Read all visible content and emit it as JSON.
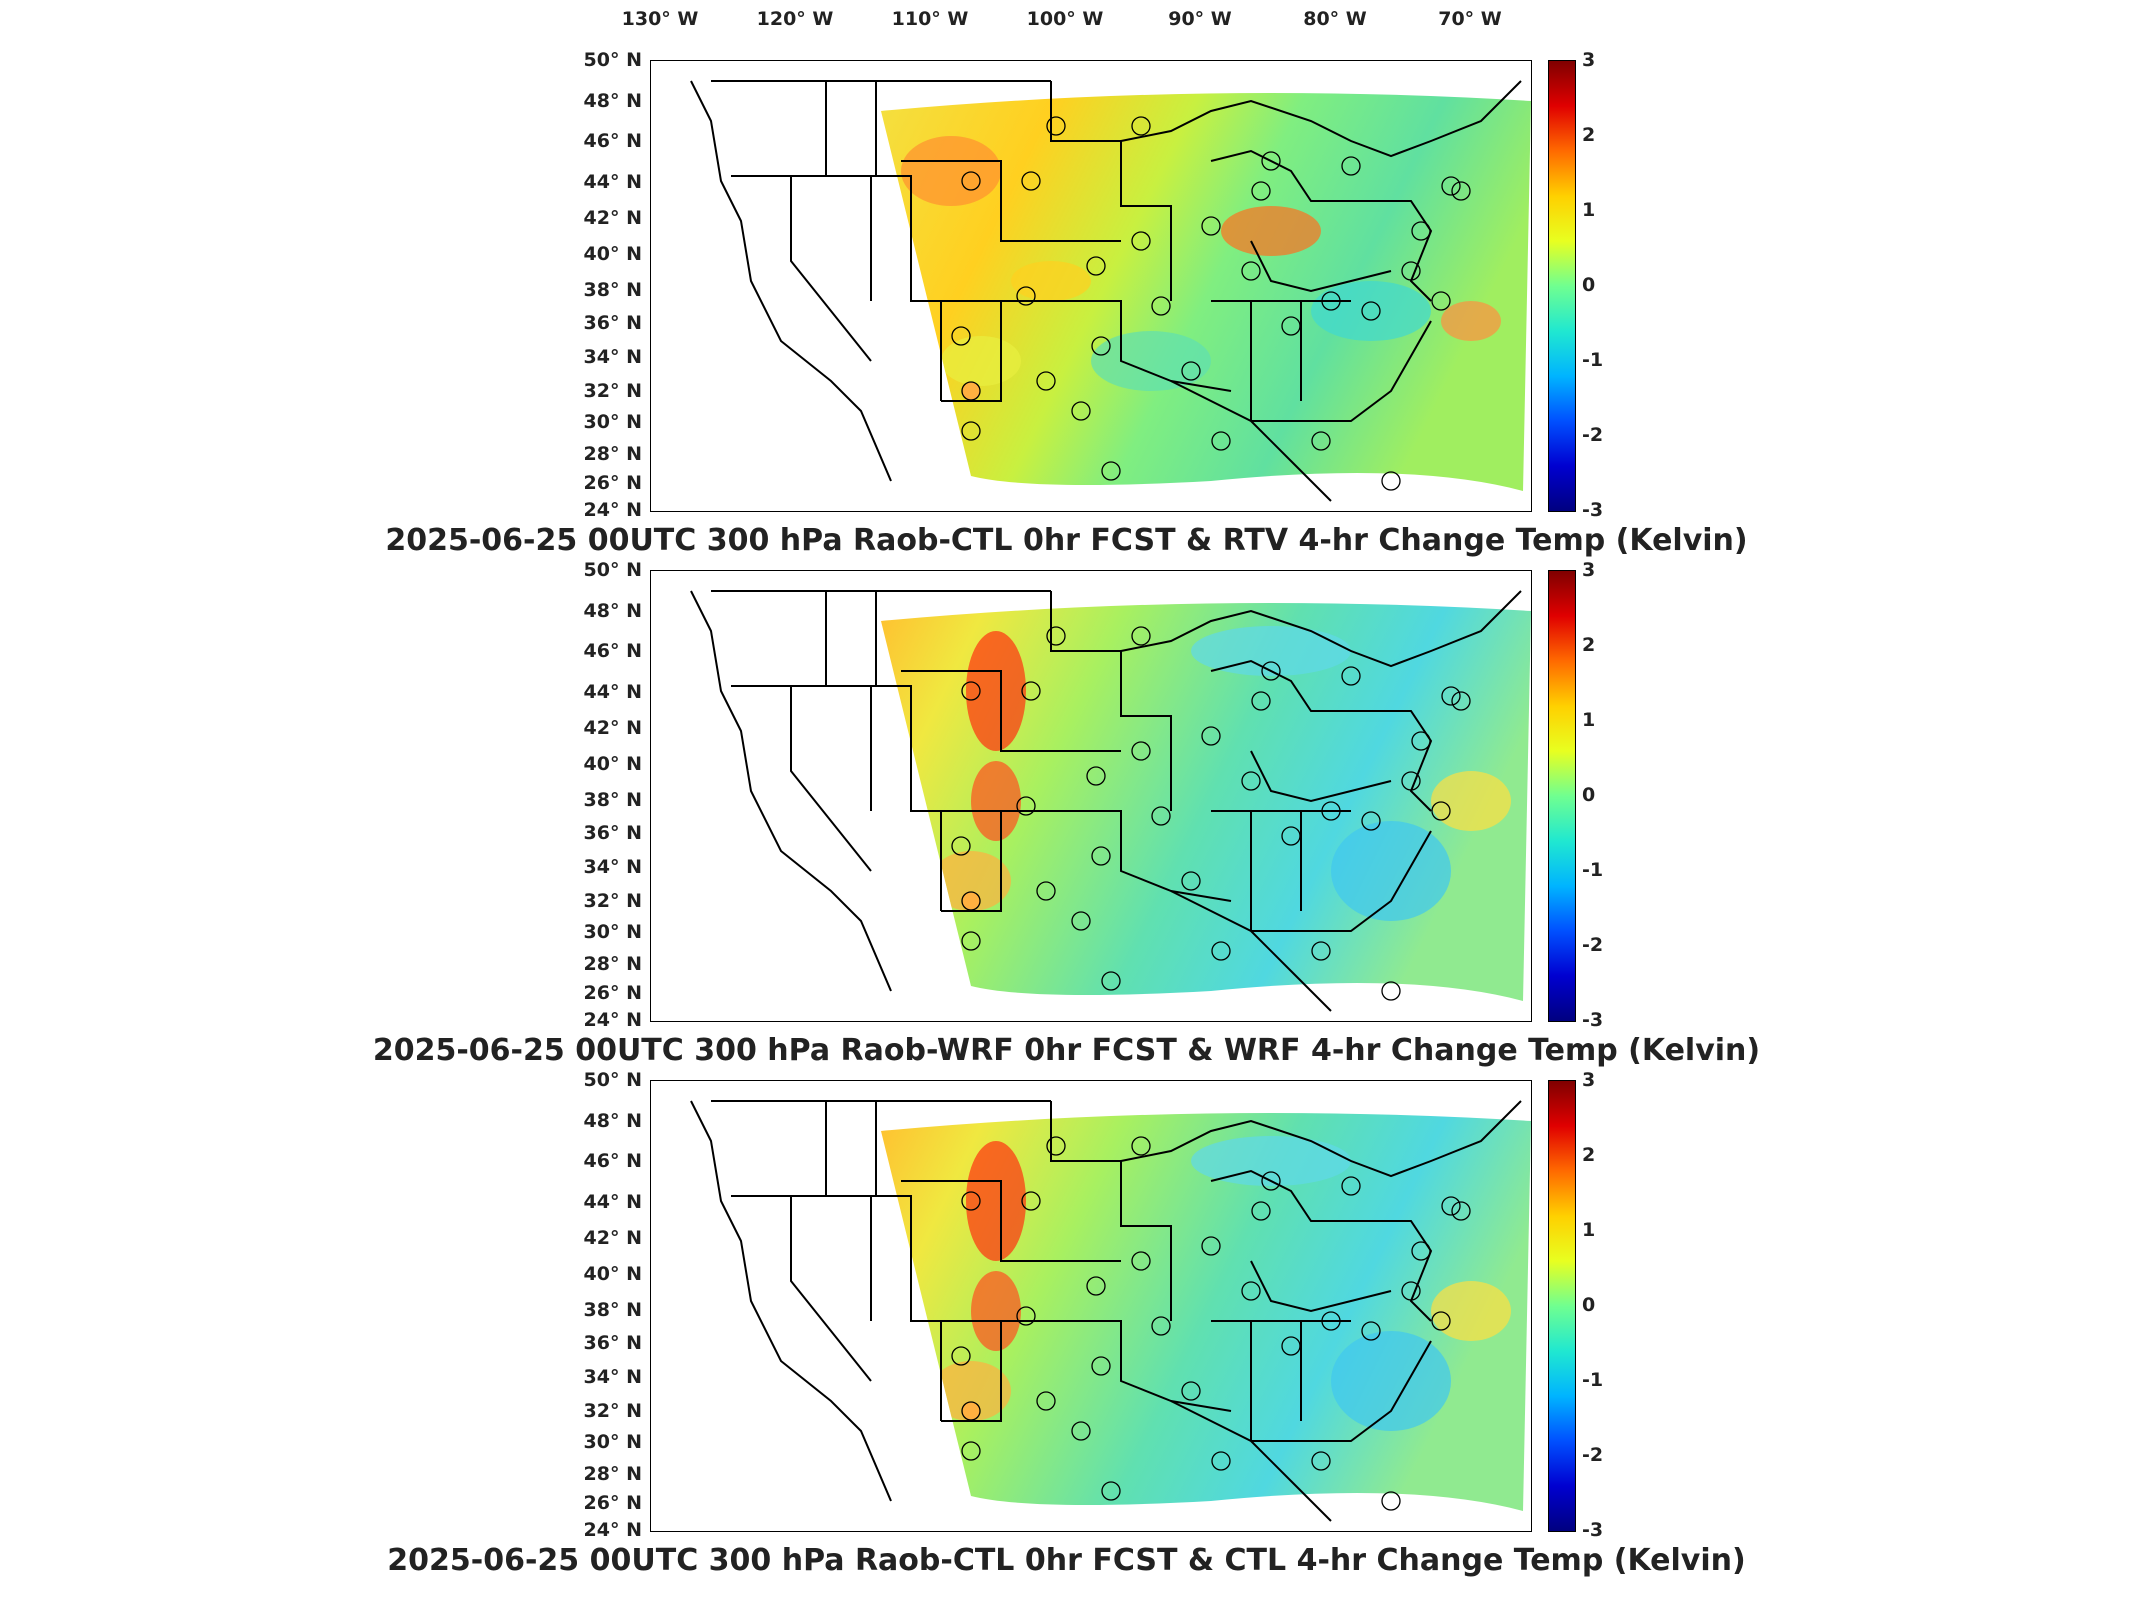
{
  "longitude_labels": [
    "130° W",
    "120° W",
    "110° W",
    "100° W",
    "90° W",
    "80° W",
    "70° W"
  ],
  "latitude_labels": [
    "50° N",
    "48° N",
    "46° N",
    "44° N",
    "42° N",
    "40° N",
    "38° N",
    "36° N",
    "34° N",
    "32° N",
    "30° N",
    "28° N",
    "26° N",
    "24° N"
  ],
  "colorbar": {
    "ticks": [
      "3",
      "2",
      "1",
      "0",
      "-1",
      "-2",
      "-3"
    ],
    "colors": [
      "#800000",
      "#e00000",
      "#ff6a00",
      "#ffd000",
      "#e8ff20",
      "#70ff90",
      "#20e8d0",
      "#00b4ff",
      "#0050ff",
      "#0000d0",
      "#000080"
    ]
  },
  "panels": [
    {
      "title": "2025-06-25 00UTC 300 hPa Raob-CTL 0hr FCST & RTV 4-hr Change Temp (Kelvin)",
      "theme": "warm-mixed"
    },
    {
      "title": "2025-06-25 00UTC 300 hPa Raob-WRF 0hr FCST & WRF 4-hr Change Temp (Kelvin)",
      "theme": "cool-west-hot"
    },
    {
      "title": "2025-06-25 00UTC 300 hPa Raob-CTL 0hr FCST & CTL 4-hr Change Temp (Kelvin)",
      "theme": "cool-west-hot"
    }
  ]
}
